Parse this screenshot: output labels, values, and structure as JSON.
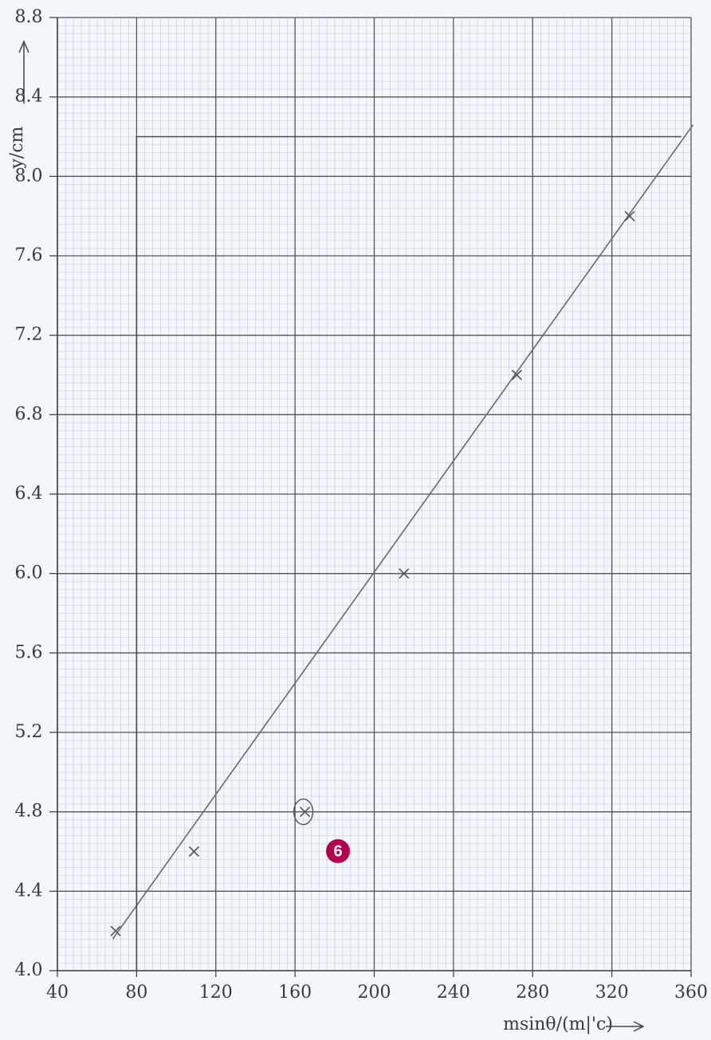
{
  "chart_data": {
    "type": "scatter",
    "x_label": "msinθ/(m|'c)",
    "y_label": "y/cm",
    "xlim": [
      40,
      360
    ],
    "ylim": [
      4.0,
      8.8
    ],
    "xticks": [
      40,
      80,
      120,
      160,
      200,
      240,
      280,
      320,
      360
    ],
    "yticks": [
      {
        "value": 4.0,
        "label": "4.0"
      },
      {
        "value": 4.4,
        "label": "4.4"
      },
      {
        "value": 4.8,
        "label": "4.8"
      },
      {
        "value": 5.2,
        "label": "5.2"
      },
      {
        "value": 5.6,
        "label": "5.6"
      },
      {
        "value": 6.0,
        "label": "6.0"
      },
      {
        "value": 6.4,
        "label": "6.4"
      },
      {
        "value": 6.8,
        "label": "6.8"
      },
      {
        "value": 7.2,
        "label": "7.2"
      },
      {
        "value": 7.6,
        "label": "7.6"
      },
      {
        "value": 8.0,
        "label": "8.0"
      },
      {
        "value": 8.4,
        "label": "8.4"
      },
      {
        "value": 8.8,
        "label": "8.8"
      }
    ],
    "grid": true,
    "series": [
      {
        "x": [
          69.4,
          109,
          165,
          215,
          272,
          329
        ],
        "values": [
          4.2,
          4.6,
          4.8,
          6.0,
          7.0,
          7.8
        ],
        "color": "#555555"
      }
    ],
    "circled_index": 2,
    "lines": [
      {
        "x": [
          68,
          361
        ],
        "values": [
          4.16,
          8.26
        ],
        "color": "#6a6a6a"
      },
      {
        "x": [
          80,
          80,
          355
        ],
        "values": [
          4.0,
          8.2,
          8.2
        ],
        "color": "#4a4a4a"
      }
    ],
    "badge": "6"
  }
}
